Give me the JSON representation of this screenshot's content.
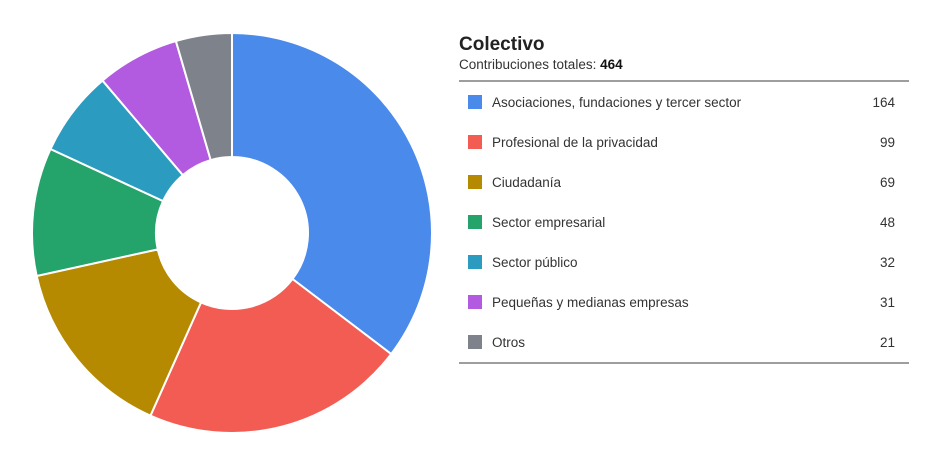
{
  "chart_data": {
    "type": "pie",
    "title": "Colectivo",
    "subtitle_prefix": "Contribuciones totales:",
    "total": "464",
    "categories": [
      "Asociaciones, fundaciones y tercer sector",
      "Profesional de la privacidad",
      "Ciudadanía",
      "Sector empresarial",
      "Sector público",
      "Pequeñas y medianas empresas",
      "Otros"
    ],
    "values": [
      164,
      99,
      69,
      48,
      32,
      31,
      21
    ],
    "colors": [
      "#4a8aeb",
      "#f25c52",
      "#b58900",
      "#24a36b",
      "#2b9bbf",
      "#b25be0",
      "#7e828a"
    ],
    "legend_placement": "right"
  }
}
